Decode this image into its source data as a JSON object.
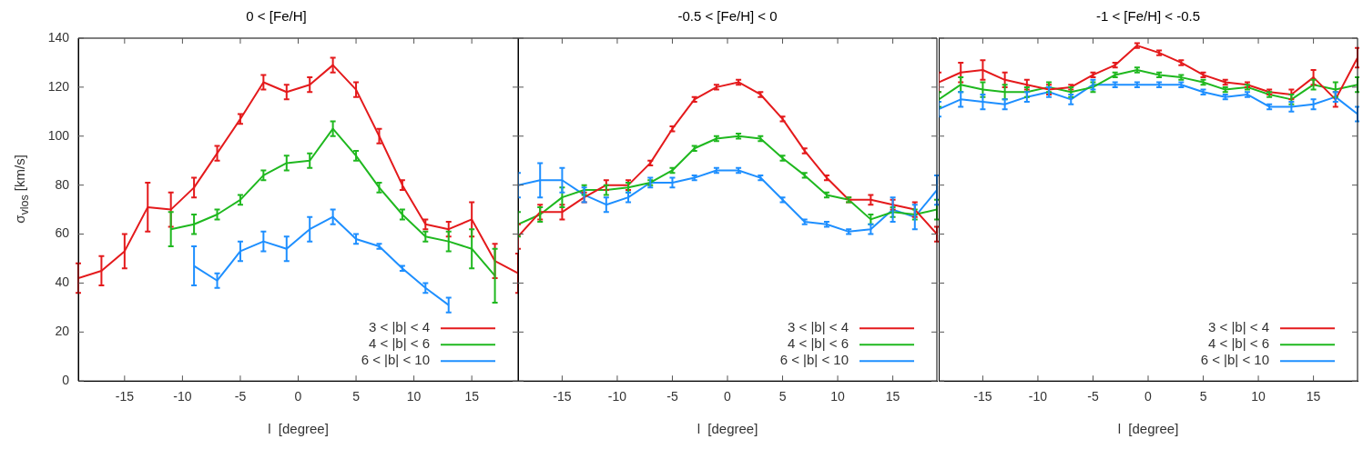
{
  "chart_data": [
    {
      "type": "line",
      "title": "0 < [Fe/H]",
      "xlabel": "l  [degree]",
      "ylabel": "σ$_{vlos}$ [km/s]",
      "xlim": [
        -19,
        19
      ],
      "xticks": [
        -15,
        -10,
        -5,
        0,
        5,
        10,
        15
      ],
      "ylim": [
        0,
        140
      ],
      "yticks": [
        0,
        20,
        40,
        60,
        80,
        100,
        120,
        140
      ],
      "legend": "bottom right",
      "grid": false,
      "series": [
        {
          "name": "3 < |b| < 4",
          "color": "#e41a1c",
          "x": [
            -19,
            -17,
            -15,
            -13,
            -11,
            -9,
            -7,
            -5,
            -3,
            -1,
            1,
            3,
            5,
            7,
            9,
            11,
            13,
            15,
            17,
            19
          ],
          "values": [
            42,
            45,
            53,
            71,
            70,
            79,
            93,
            107,
            122,
            118,
            121,
            129,
            119,
            100,
            80,
            64,
            62,
            66,
            49,
            44
          ],
          "errors": [
            6,
            6,
            7,
            10,
            7,
            4,
            3,
            2,
            3,
            3,
            3,
            3,
            3,
            3,
            2,
            2,
            3,
            7,
            7,
            8
          ]
        },
        {
          "name": "4 < |b| < 6",
          "color": "#1fb81f",
          "x": [
            -11,
            -9,
            -7,
            -5,
            -3,
            -1,
            1,
            3,
            5,
            7,
            9,
            11,
            13,
            15,
            17
          ],
          "values": [
            62,
            64,
            68,
            74,
            84,
            89,
            90,
            103,
            92,
            79,
            68,
            59,
            57,
            54,
            43
          ],
          "errors": [
            7,
            4,
            2,
            2,
            2,
            3,
            3,
            3,
            2,
            2,
            2,
            2,
            4,
            8,
            11
          ]
        },
        {
          "name": "6 < |b| < 10",
          "color": "#1e8fff",
          "x": [
            -9,
            -7,
            -5,
            -3,
            -1,
            1,
            3,
            5,
            7,
            9,
            11,
            13
          ],
          "values": [
            47,
            41,
            53,
            57,
            54,
            62,
            67,
            58,
            55,
            46,
            38,
            31
          ],
          "errors": [
            8,
            3,
            4,
            4,
            5,
            5,
            3,
            2,
            1,
            1,
            2,
            3
          ]
        }
      ]
    },
    {
      "type": "line",
      "title": "-0.5 < [Fe/H] < 0",
      "xlabel": "l  [degree]",
      "xlim": [
        -19,
        19
      ],
      "xticks": [
        -15,
        -10,
        -5,
        0,
        5,
        10,
        15
      ],
      "ylim": [
        0,
        140
      ],
      "yticks": [
        0,
        20,
        40,
        60,
        80,
        100,
        120,
        140
      ],
      "legend": "bottom right",
      "grid": false,
      "tick_labels": "x",
      "series": [
        {
          "name": "3 < |b| < 4",
          "color": "#e41a1c",
          "x": [
            -19,
            -17,
            -15,
            -13,
            -11,
            -9,
            -7,
            -5,
            -3,
            -1,
            1,
            3,
            5,
            7,
            9,
            11,
            13,
            15,
            17,
            19
          ],
          "values": [
            59,
            69,
            69,
            75,
            80,
            80,
            89,
            103,
            115,
            120,
            122,
            117,
            107,
            94,
            83,
            74,
            74,
            72,
            70,
            60
          ],
          "errors": [
            5,
            3,
            3,
            2,
            2,
            2,
            1,
            1,
            1,
            1,
            1,
            1,
            1,
            1,
            1,
            1,
            2,
            2,
            3,
            3
          ]
        },
        {
          "name": "4 < |b| < 6",
          "color": "#1fb81f",
          "x": [
            -19,
            -17,
            -15,
            -13,
            -11,
            -9,
            -7,
            -5,
            -3,
            -1,
            1,
            3,
            5,
            7,
            9,
            11,
            13,
            15,
            17,
            19
          ],
          "values": [
            64,
            68,
            75,
            78,
            78,
            79,
            81,
            86,
            95,
            99,
            100,
            99,
            91,
            84,
            76,
            74,
            66,
            69,
            68,
            70
          ],
          "errors": [
            5,
            3,
            4,
            2,
            2,
            2,
            1,
            1,
            1,
            1,
            1,
            1,
            1,
            1,
            1,
            1,
            2,
            2,
            2,
            4
          ]
        },
        {
          "name": "6 < |b| < 10",
          "color": "#1e8fff",
          "x": [
            -19,
            -17,
            -15,
            -13,
            -11,
            -9,
            -7,
            -5,
            -3,
            -1,
            1,
            3,
            5,
            7,
            9,
            11,
            13,
            15,
            17,
            19
          ],
          "values": [
            80,
            82,
            82,
            76,
            72,
            75,
            81,
            81,
            83,
            86,
            86,
            83,
            74,
            65,
            64,
            61,
            62,
            70,
            67,
            78
          ],
          "errors": [
            5,
            7,
            5,
            3,
            3,
            2,
            2,
            2,
            1,
            1,
            1,
            1,
            1,
            1,
            1,
            1,
            2,
            5,
            5,
            6
          ]
        }
      ]
    },
    {
      "type": "line",
      "title": "-1 < [Fe/H] < -0.5",
      "xlabel": "l  [degree]",
      "xlim": [
        -19,
        19
      ],
      "xticks": [
        -15,
        -10,
        -5,
        0,
        5,
        10,
        15
      ],
      "ylim": [
        0,
        140
      ],
      "yticks": [
        0,
        20,
        40,
        60,
        80,
        100,
        120,
        140
      ],
      "legend": "bottom right",
      "grid": false,
      "tick_labels": "x",
      "series": [
        {
          "name": "3 < |b| < 4",
          "color": "#e41a1c",
          "x": [
            -19,
            -17,
            -15,
            -13,
            -11,
            -9,
            -7,
            -5,
            -3,
            -1,
            1,
            3,
            5,
            7,
            9,
            11,
            13,
            15,
            17,
            19
          ],
          "values": [
            122,
            126,
            127,
            123,
            121,
            119,
            120,
            125,
            129,
            137,
            134,
            130,
            125,
            122,
            121,
            118,
            117,
            124,
            115,
            132
          ],
          "errors": [
            4,
            4,
            4,
            3,
            2,
            2,
            1,
            1,
            1,
            1,
            1,
            1,
            1,
            1,
            1,
            1,
            2,
            3,
            3,
            4
          ]
        },
        {
          "name": "4 < |b| < 6",
          "color": "#1fb81f",
          "x": [
            -19,
            -17,
            -15,
            -13,
            -11,
            -9,
            -7,
            -5,
            -3,
            -1,
            1,
            3,
            5,
            7,
            9,
            11,
            13,
            15,
            17,
            19
          ],
          "values": [
            115,
            121,
            119,
            118,
            118,
            120,
            118,
            120,
            125,
            127,
            125,
            124,
            122,
            119,
            120,
            117,
            115,
            121,
            119,
            121
          ],
          "errors": [
            3,
            3,
            3,
            3,
            2,
            2,
            2,
            2,
            1,
            1,
            1,
            1,
            1,
            1,
            1,
            1,
            2,
            2,
            3,
            3
          ]
        },
        {
          "name": "6 < |b| < 10",
          "color": "#1e8fff",
          "x": [
            -19,
            -17,
            -15,
            -13,
            -11,
            -9,
            -7,
            -5,
            -3,
            -1,
            1,
            3,
            5,
            7,
            9,
            11,
            13,
            15,
            17,
            19
          ],
          "values": [
            111,
            115,
            114,
            113,
            116,
            118,
            115,
            121,
            121,
            121,
            121,
            121,
            118,
            116,
            117,
            112,
            112,
            113,
            116,
            109
          ],
          "errors": [
            3,
            3,
            3,
            2,
            2,
            2,
            2,
            2,
            1,
            1,
            1,
            1,
            1,
            1,
            1,
            1,
            2,
            2,
            2,
            3
          ]
        }
      ]
    }
  ]
}
